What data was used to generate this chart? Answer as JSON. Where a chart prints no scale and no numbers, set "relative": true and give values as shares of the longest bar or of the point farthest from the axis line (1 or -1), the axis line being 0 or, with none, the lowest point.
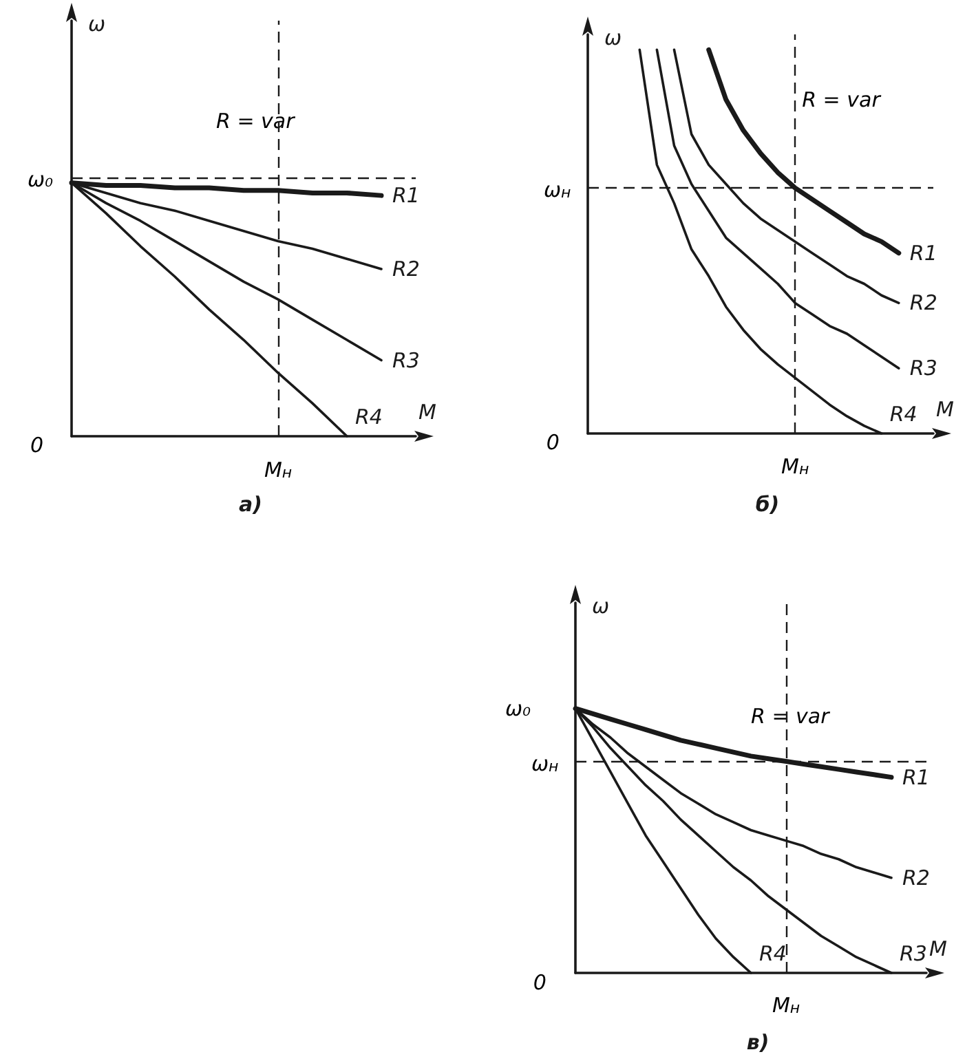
{
  "chart_data": [
    {
      "type": "line",
      "title": "а)",
      "xlabel": "M",
      "ylabel": "ω",
      "relative": true,
      "categories": [
        null,
        null,
        null,
        null,
        null,
        null,
        null,
        null,
        null,
        null,
        null
      ],
      "series": [
        {
          "name": "R1",
          "color": "#1a1a1a",
          "values": [
            1,
            0.99,
            0.99,
            0.98,
            0.98,
            0.97,
            0.97,
            0.96,
            0.96,
            0.95,
            null
          ]
        },
        {
          "name": "R2",
          "color": "#1a1a1a",
          "values": [
            1,
            0.96,
            0.92,
            0.89,
            0.85,
            0.81,
            0.77,
            0.74,
            0.7,
            0.66,
            null
          ]
        },
        {
          "name": "R3",
          "color": "#1a1a1a",
          "values": [
            1,
            0.92,
            0.85,
            0.77,
            0.69,
            0.61,
            0.54,
            0.46,
            0.38,
            0.3,
            null
          ]
        },
        {
          "name": "R4",
          "color": "#1a1a1a",
          "values": [
            1,
            0.88,
            0.75,
            0.63,
            0.5,
            0.38,
            0.25,
            0.13,
            0,
            null,
            null
          ]
        }
      ],
      "ref_lines": [
        {
          "axis": "y",
          "value": 1.02,
          "label": "ω₀",
          "line_style": "dashed",
          "color": "#1a1a1a"
        }
      ],
      "annotations": [
        "R = var",
        "0",
        "M$_{н}$"
      ]
    },
    {
      "type": "line",
      "title": "б)",
      "xlabel": "M",
      "ylabel": "ω",
      "relative": true,
      "categories": [
        null,
        null,
        null,
        null,
        null,
        null,
        null,
        null,
        null,
        null,
        null,
        null,
        null,
        null,
        null,
        null,
        null,
        null,
        null,
        null,
        null
      ],
      "series": [
        {
          "name": "R1",
          "color": "#1a1a1a",
          "values": [
            null,
            null,
            null,
            null,
            null,
            null,
            null,
            1,
            0.87,
            0.79,
            0.73,
            0.68,
            0.64,
            0.61,
            0.58,
            0.55,
            0.52,
            0.5,
            0.47,
            null,
            null
          ]
        },
        {
          "name": "R2",
          "color": "#1a1a1a",
          "values": [
            null,
            null,
            null,
            null,
            null,
            1,
            0.78,
            0.7,
            0.65,
            0.6,
            0.56,
            0.53,
            0.5,
            0.47,
            0.44,
            0.41,
            0.39,
            0.36,
            0.34,
            null,
            null
          ]
        },
        {
          "name": "R3",
          "color": "#1a1a1a",
          "values": [
            null,
            null,
            null,
            null,
            1,
            0.75,
            0.65,
            0.58,
            0.51,
            0.47,
            0.43,
            0.39,
            0.34,
            0.31,
            0.28,
            0.26,
            0.23,
            0.2,
            0.17,
            null,
            null
          ]
        },
        {
          "name": "R4",
          "color": "#1a1a1a",
          "values": [
            null,
            null,
            null,
            1,
            0.7,
            0.6,
            0.48,
            0.41,
            0.33,
            0.27,
            0.22,
            0.18,
            0.145,
            0.11,
            0.075,
            0.045,
            0.02,
            0,
            null,
            null,
            null
          ]
        }
      ],
      "ref_lines": [
        {
          "axis": "y",
          "value": 0.64,
          "label": "ω$_{н}$",
          "line_style": "dashed",
          "color": "#1a1a1a"
        }
      ],
      "annotations": [
        "R = var",
        "0",
        "M$_{н}$"
      ]
    },
    {
      "type": "line",
      "title": "в)",
      "xlabel": "M",
      "ylabel": "ω",
      "relative": true,
      "categories": [
        null,
        null,
        null,
        null,
        null,
        null,
        null,
        null,
        null,
        null,
        null,
        null,
        null,
        null,
        null,
        null,
        null,
        null,
        null,
        null,
        null
      ],
      "series": [
        {
          "name": "R1",
          "color": "#1a1a1a",
          "values": [
            1,
            0.98,
            0.96,
            0.94,
            0.92,
            0.9,
            0.88,
            0.865,
            0.85,
            0.835,
            0.82,
            0.81,
            0.8,
            0.79,
            0.78,
            0.77,
            0.76,
            0.75,
            0.74,
            null,
            null
          ]
        },
        {
          "name": "R2",
          "color": "#1a1a1a",
          "values": [
            1,
            0.94,
            0.89,
            0.83,
            0.78,
            0.73,
            0.68,
            0.64,
            0.6,
            0.57,
            0.54,
            0.52,
            0.5,
            0.48,
            0.45,
            0.43,
            0.4,
            0.38,
            0.36,
            null,
            null
          ]
        },
        {
          "name": "R3",
          "color": "#1a1a1a",
          "values": [
            1,
            0.93,
            0.85,
            0.78,
            0.71,
            0.65,
            0.58,
            0.52,
            0.46,
            0.4,
            0.35,
            0.29,
            0.24,
            0.19,
            0.14,
            0.1,
            0.06,
            0.03,
            0,
            null,
            null
          ]
        },
        {
          "name": "R4",
          "color": "#1a1a1a",
          "values": [
            1,
            0.88,
            0.76,
            0.64,
            0.52,
            0.42,
            0.32,
            0.22,
            0.13,
            0.06,
            0,
            null,
            null,
            null,
            null,
            null,
            null,
            null,
            null,
            null,
            null
          ]
        }
      ],
      "ref_lines": [
        {
          "axis": "y",
          "value": 0.8,
          "label": "ω$_{н}$",
          "line_style": "dashed",
          "color": "#1a1a1a"
        }
      ],
      "annotations": [
        "R = var",
        "0",
        "M$_{н}$",
        "ω₀"
      ]
    }
  ]
}
